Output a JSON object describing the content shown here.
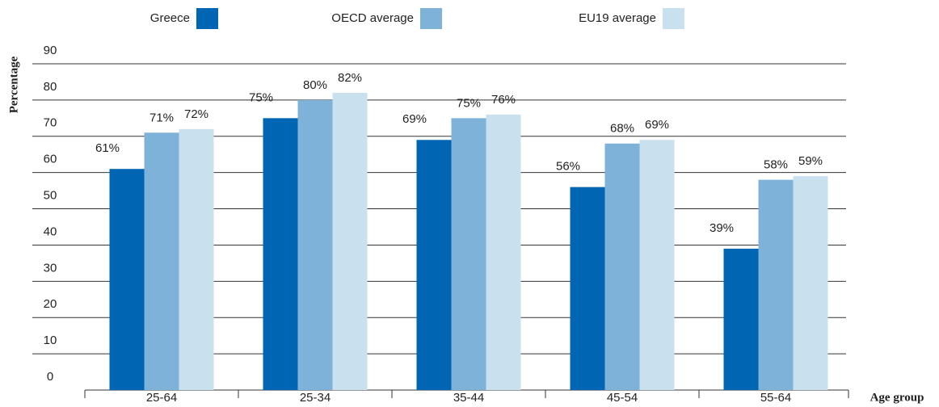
{
  "chart_data": {
    "type": "bar",
    "y_label": "Percentage",
    "x_label": "Age group",
    "categories": [
      "25-64",
      "25-34",
      "35-44",
      "45-54",
      "55-64"
    ],
    "series": [
      {
        "name": "Greece",
        "color": "#0066b3",
        "values": [
          61,
          75,
          69,
          56,
          39
        ],
        "value_labels": [
          "61%",
          "75%",
          "69%",
          "56%",
          "39%"
        ]
      },
      {
        "name": "OECD average",
        "color": "#7fb2d9",
        "values": [
          71,
          80,
          75,
          68,
          58
        ],
        "value_labels": [
          "71%",
          "80%",
          "75%",
          "68%",
          "58%"
        ]
      },
      {
        "name": "EU19 average",
        "color": "#c9e0ef",
        "values": [
          72,
          82,
          76,
          69,
          59
        ],
        "value_labels": [
          "72%",
          "82%",
          "76%",
          "69%",
          "59%"
        ]
      }
    ],
    "ylim": [
      0,
      90
    ],
    "yticks": [
      0,
      10,
      20,
      30,
      40,
      50,
      60,
      70,
      80,
      90
    ],
    "grid": true,
    "legend": "top"
  }
}
